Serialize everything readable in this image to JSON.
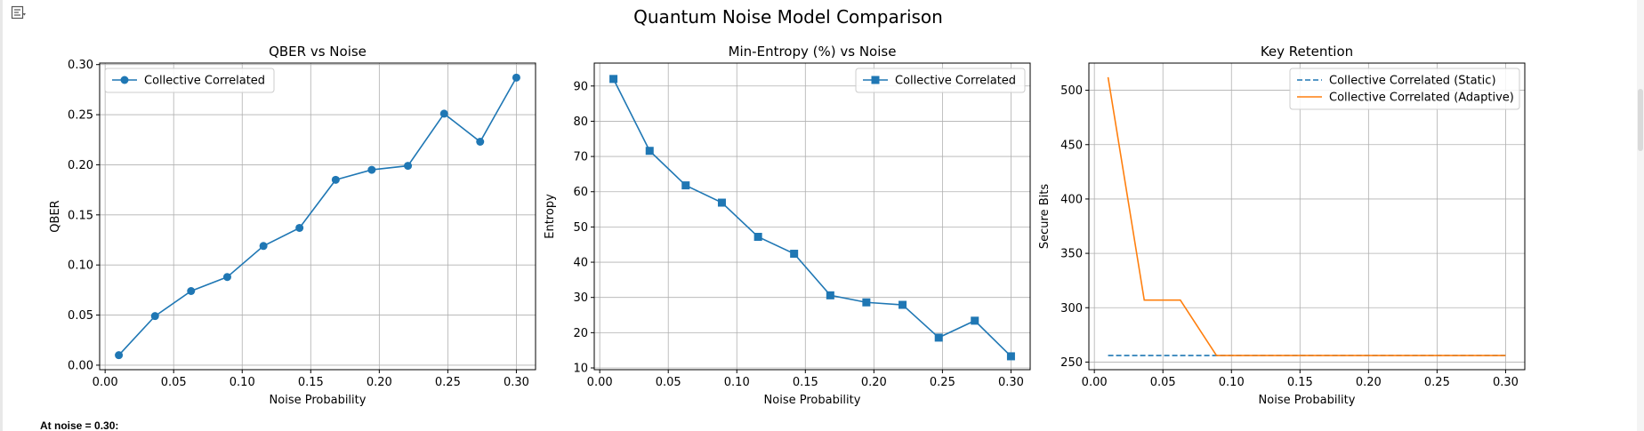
{
  "figure_title": "Quantum Noise Model Comparison",
  "footnote": "At noise = 0.30:",
  "icons": {
    "output_toggle": "output-collapse-icon"
  },
  "colors": {
    "blue": "#1f77b4",
    "orange": "#ff7f0e",
    "grid": "#b0b0b0"
  },
  "chart_data": [
    {
      "type": "line",
      "title": "QBER vs Noise",
      "xlabel": "Noise Probability",
      "ylabel": "QBER",
      "xlim": [
        -0.004,
        0.314
      ],
      "ylim": [
        -0.0045,
        0.3015
      ],
      "xticks": [
        0.0,
        0.05,
        0.1,
        0.15,
        0.2,
        0.25,
        0.3
      ],
      "xtick_labels": [
        "0.00",
        "0.05",
        "0.10",
        "0.15",
        "0.20",
        "0.25",
        "0.30"
      ],
      "yticks": [
        0.0,
        0.05,
        0.1,
        0.15,
        0.2,
        0.25,
        0.3
      ],
      "ytick_labels": [
        "0.00",
        "0.05",
        "0.10",
        "0.15",
        "0.20",
        "0.25",
        "0.30"
      ],
      "grid": true,
      "legend": "upper left",
      "x": [
        0.01,
        0.0364,
        0.0627,
        0.0891,
        0.1155,
        0.1418,
        0.1682,
        0.1945,
        0.2209,
        0.2473,
        0.2736,
        0.3
      ],
      "series": [
        {
          "name": "Collective Correlated",
          "marker": "circle",
          "color": "#1f77b4",
          "values": [
            0.01,
            0.049,
            0.074,
            0.088,
            0.119,
            0.137,
            0.185,
            0.195,
            0.199,
            0.251,
            0.223,
            0.287
          ]
        }
      ]
    },
    {
      "type": "line",
      "title": "Min-Entropy (%) vs Noise",
      "xlabel": "Noise Probability",
      "ylabel": "Entropy",
      "xlim": [
        -0.004,
        0.314
      ],
      "ylim": [
        9.5,
        96.5
      ],
      "xticks": [
        0.0,
        0.05,
        0.1,
        0.15,
        0.2,
        0.25,
        0.3
      ],
      "xtick_labels": [
        "0.00",
        "0.05",
        "0.10",
        "0.15",
        "0.20",
        "0.25",
        "0.30"
      ],
      "yticks": [
        10,
        20,
        30,
        40,
        50,
        60,
        70,
        80,
        90
      ],
      "ytick_labels": [
        "10",
        "20",
        "30",
        "40",
        "50",
        "60",
        "70",
        "80",
        "90"
      ],
      "grid": true,
      "legend": "upper right",
      "x": [
        0.01,
        0.0364,
        0.0627,
        0.0891,
        0.1155,
        0.1418,
        0.1682,
        0.1945,
        0.2209,
        0.2473,
        0.2736,
        0.3
      ],
      "series": [
        {
          "name": "Collective Correlated",
          "marker": "square",
          "color": "#1f77b4",
          "values": [
            92.0,
            71.6,
            61.8,
            56.9,
            47.2,
            42.4,
            30.6,
            28.6,
            27.9,
            18.6,
            23.4,
            13.3
          ]
        }
      ]
    },
    {
      "type": "line",
      "title": "Key Retention",
      "xlabel": "Noise Probability",
      "ylabel": "Secure Bits",
      "xlim": [
        -0.004,
        0.314
      ],
      "ylim": [
        243,
        525
      ],
      "xticks": [
        0.0,
        0.05,
        0.1,
        0.15,
        0.2,
        0.25,
        0.3
      ],
      "xtick_labels": [
        "0.00",
        "0.05",
        "0.10",
        "0.15",
        "0.20",
        "0.25",
        "0.30"
      ],
      "yticks": [
        250,
        300,
        350,
        400,
        450,
        500
      ],
      "ytick_labels": [
        "250",
        "300",
        "350",
        "400",
        "450",
        "500"
      ],
      "grid": true,
      "legend": "upper right",
      "x": [
        0.01,
        0.0364,
        0.0627,
        0.0891,
        0.1155,
        0.1418,
        0.1682,
        0.1945,
        0.2209,
        0.2473,
        0.2736,
        0.3
      ],
      "series": [
        {
          "name": "Collective Correlated (Static)",
          "style": "dashed",
          "color": "#1f77b4",
          "values": [
            256,
            256,
            256,
            256,
            256,
            256,
            256,
            256,
            256,
            256,
            256,
            256
          ]
        },
        {
          "name": "Collective Correlated (Adaptive)",
          "style": "solid",
          "color": "#ff7f0e",
          "values": [
            512,
            307,
            307,
            256,
            256,
            256,
            256,
            256,
            256,
            256,
            256,
            256
          ]
        }
      ]
    }
  ]
}
